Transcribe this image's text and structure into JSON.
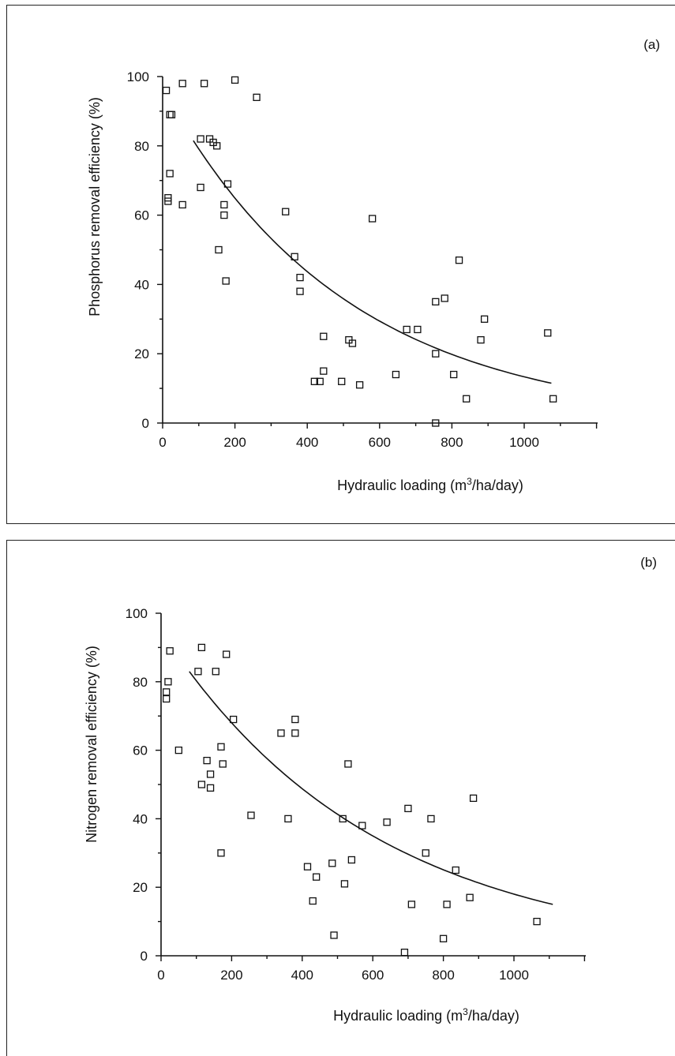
{
  "chart_data": [
    {
      "type": "scatter",
      "panel_label": "(a)",
      "xlabel_prefix": "Hydraulic loading (m",
      "xlabel_sup": "3",
      "xlabel_suffix": "/ha/day)",
      "ylabel": "Phosphorus removal efficiency (%)",
      "xlim": [
        0,
        1200
      ],
      "ylim": [
        0,
        100
      ],
      "x_ticks": [
        0,
        200,
        400,
        600,
        800,
        1000
      ],
      "y_ticks": [
        0,
        20,
        40,
        60,
        80,
        100
      ],
      "grid": false,
      "legend": "none",
      "points": [
        {
          "x": 10,
          "y": 96
        },
        {
          "x": 20,
          "y": 89
        },
        {
          "x": 25,
          "y": 89
        },
        {
          "x": 55,
          "y": 98
        },
        {
          "x": 115,
          "y": 98
        },
        {
          "x": 200,
          "y": 99
        },
        {
          "x": 260,
          "y": 94
        },
        {
          "x": 105,
          "y": 82
        },
        {
          "x": 130,
          "y": 82
        },
        {
          "x": 140,
          "y": 81
        },
        {
          "x": 150,
          "y": 80
        },
        {
          "x": 20,
          "y": 72
        },
        {
          "x": 105,
          "y": 68
        },
        {
          "x": 180,
          "y": 69
        },
        {
          "x": 15,
          "y": 65
        },
        {
          "x": 15,
          "y": 64
        },
        {
          "x": 55,
          "y": 63
        },
        {
          "x": 170,
          "y": 63
        },
        {
          "x": 170,
          "y": 60
        },
        {
          "x": 155,
          "y": 50
        },
        {
          "x": 175,
          "y": 41
        },
        {
          "x": 340,
          "y": 61
        },
        {
          "x": 365,
          "y": 48
        },
        {
          "x": 380,
          "y": 42
        },
        {
          "x": 380,
          "y": 38
        },
        {
          "x": 580,
          "y": 59
        },
        {
          "x": 445,
          "y": 25
        },
        {
          "x": 445,
          "y": 15
        },
        {
          "x": 420,
          "y": 12
        },
        {
          "x": 435,
          "y": 12
        },
        {
          "x": 495,
          "y": 12
        },
        {
          "x": 515,
          "y": 24
        },
        {
          "x": 525,
          "y": 23
        },
        {
          "x": 545,
          "y": 11
        },
        {
          "x": 645,
          "y": 14
        },
        {
          "x": 675,
          "y": 27
        },
        {
          "x": 705,
          "y": 27
        },
        {
          "x": 755,
          "y": 35
        },
        {
          "x": 780,
          "y": 36
        },
        {
          "x": 820,
          "y": 47
        },
        {
          "x": 755,
          "y": 20
        },
        {
          "x": 805,
          "y": 14
        },
        {
          "x": 840,
          "y": 7
        },
        {
          "x": 880,
          "y": 24
        },
        {
          "x": 890,
          "y": 30
        },
        {
          "x": 755,
          "y": 0
        },
        {
          "x": 1065,
          "y": 26
        },
        {
          "x": 1080,
          "y": 7
        }
      ],
      "fit_curve": {
        "x_start": 85,
        "x_end": 1075,
        "y_start": 81.5,
        "y_end": 11.5
      }
    },
    {
      "type": "scatter",
      "panel_label": "(b)",
      "xlabel_prefix": "Hydraulic loading (m",
      "xlabel_sup": "3",
      "xlabel_suffix": "/ha/day)",
      "ylabel": "Nitrogen removal efficiency (%)",
      "xlim": [
        0,
        1200
      ],
      "ylim": [
        0,
        100
      ],
      "x_ticks": [
        0,
        200,
        400,
        600,
        800,
        1000
      ],
      "y_ticks": [
        0,
        20,
        40,
        60,
        80,
        100
      ],
      "grid": false,
      "legend": "none",
      "points": [
        {
          "x": 25,
          "y": 89
        },
        {
          "x": 115,
          "y": 90
        },
        {
          "x": 185,
          "y": 88
        },
        {
          "x": 105,
          "y": 83
        },
        {
          "x": 155,
          "y": 83
        },
        {
          "x": 20,
          "y": 80
        },
        {
          "x": 15,
          "y": 77
        },
        {
          "x": 15,
          "y": 75
        },
        {
          "x": 205,
          "y": 69
        },
        {
          "x": 50,
          "y": 60
        },
        {
          "x": 170,
          "y": 61
        },
        {
          "x": 130,
          "y": 57
        },
        {
          "x": 175,
          "y": 56
        },
        {
          "x": 140,
          "y": 53
        },
        {
          "x": 115,
          "y": 50
        },
        {
          "x": 140,
          "y": 49
        },
        {
          "x": 255,
          "y": 41
        },
        {
          "x": 170,
          "y": 30
        },
        {
          "x": 340,
          "y": 65
        },
        {
          "x": 380,
          "y": 69
        },
        {
          "x": 380,
          "y": 65
        },
        {
          "x": 360,
          "y": 40
        },
        {
          "x": 530,
          "y": 56
        },
        {
          "x": 515,
          "y": 40
        },
        {
          "x": 570,
          "y": 38
        },
        {
          "x": 640,
          "y": 39
        },
        {
          "x": 700,
          "y": 43
        },
        {
          "x": 765,
          "y": 40
        },
        {
          "x": 885,
          "y": 46
        },
        {
          "x": 415,
          "y": 26
        },
        {
          "x": 440,
          "y": 23
        },
        {
          "x": 485,
          "y": 27
        },
        {
          "x": 540,
          "y": 28
        },
        {
          "x": 430,
          "y": 16
        },
        {
          "x": 520,
          "y": 21
        },
        {
          "x": 490,
          "y": 6
        },
        {
          "x": 750,
          "y": 30
        },
        {
          "x": 835,
          "y": 25
        },
        {
          "x": 710,
          "y": 15
        },
        {
          "x": 810,
          "y": 15
        },
        {
          "x": 875,
          "y": 17
        },
        {
          "x": 690,
          "y": 1
        },
        {
          "x": 800,
          "y": 5
        },
        {
          "x": 1065,
          "y": 10
        }
      ],
      "fit_curve": {
        "x_start": 80,
        "x_end": 1110,
        "y_start": 83,
        "y_end": 15
      }
    }
  ]
}
